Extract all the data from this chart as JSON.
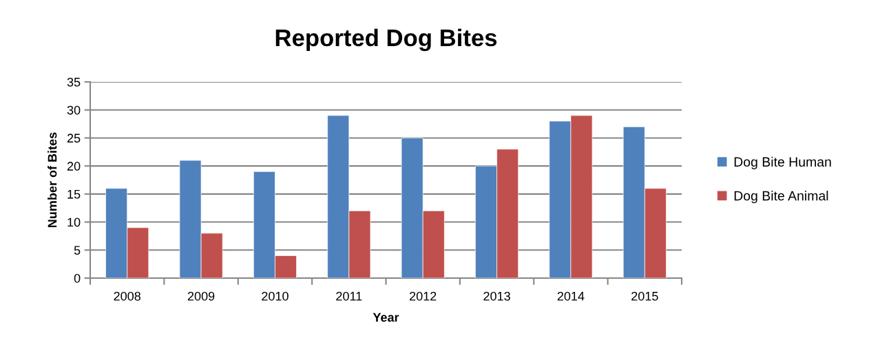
{
  "chart_data": {
    "type": "bar",
    "title": "Reported Dog Bites",
    "xlabel": "Year",
    "ylabel": "Number of Bites",
    "categories": [
      "2008",
      "2009",
      "2010",
      "2011",
      "2012",
      "2013",
      "2014",
      "2015"
    ],
    "series": [
      {
        "name": "Dog Bite Human",
        "color": "#4f81bd",
        "values": [
          16,
          21,
          19,
          29,
          25,
          20,
          28,
          27
        ]
      },
      {
        "name": "Dog Bite Animal",
        "color": "#c0504d",
        "values": [
          9,
          8,
          4,
          12,
          12,
          23,
          29,
          16
        ]
      }
    ],
    "ylim": [
      0,
      35
    ],
    "yticks": [
      0,
      5,
      10,
      15,
      20,
      25,
      30,
      35
    ],
    "grid": "y",
    "legend": "right"
  }
}
